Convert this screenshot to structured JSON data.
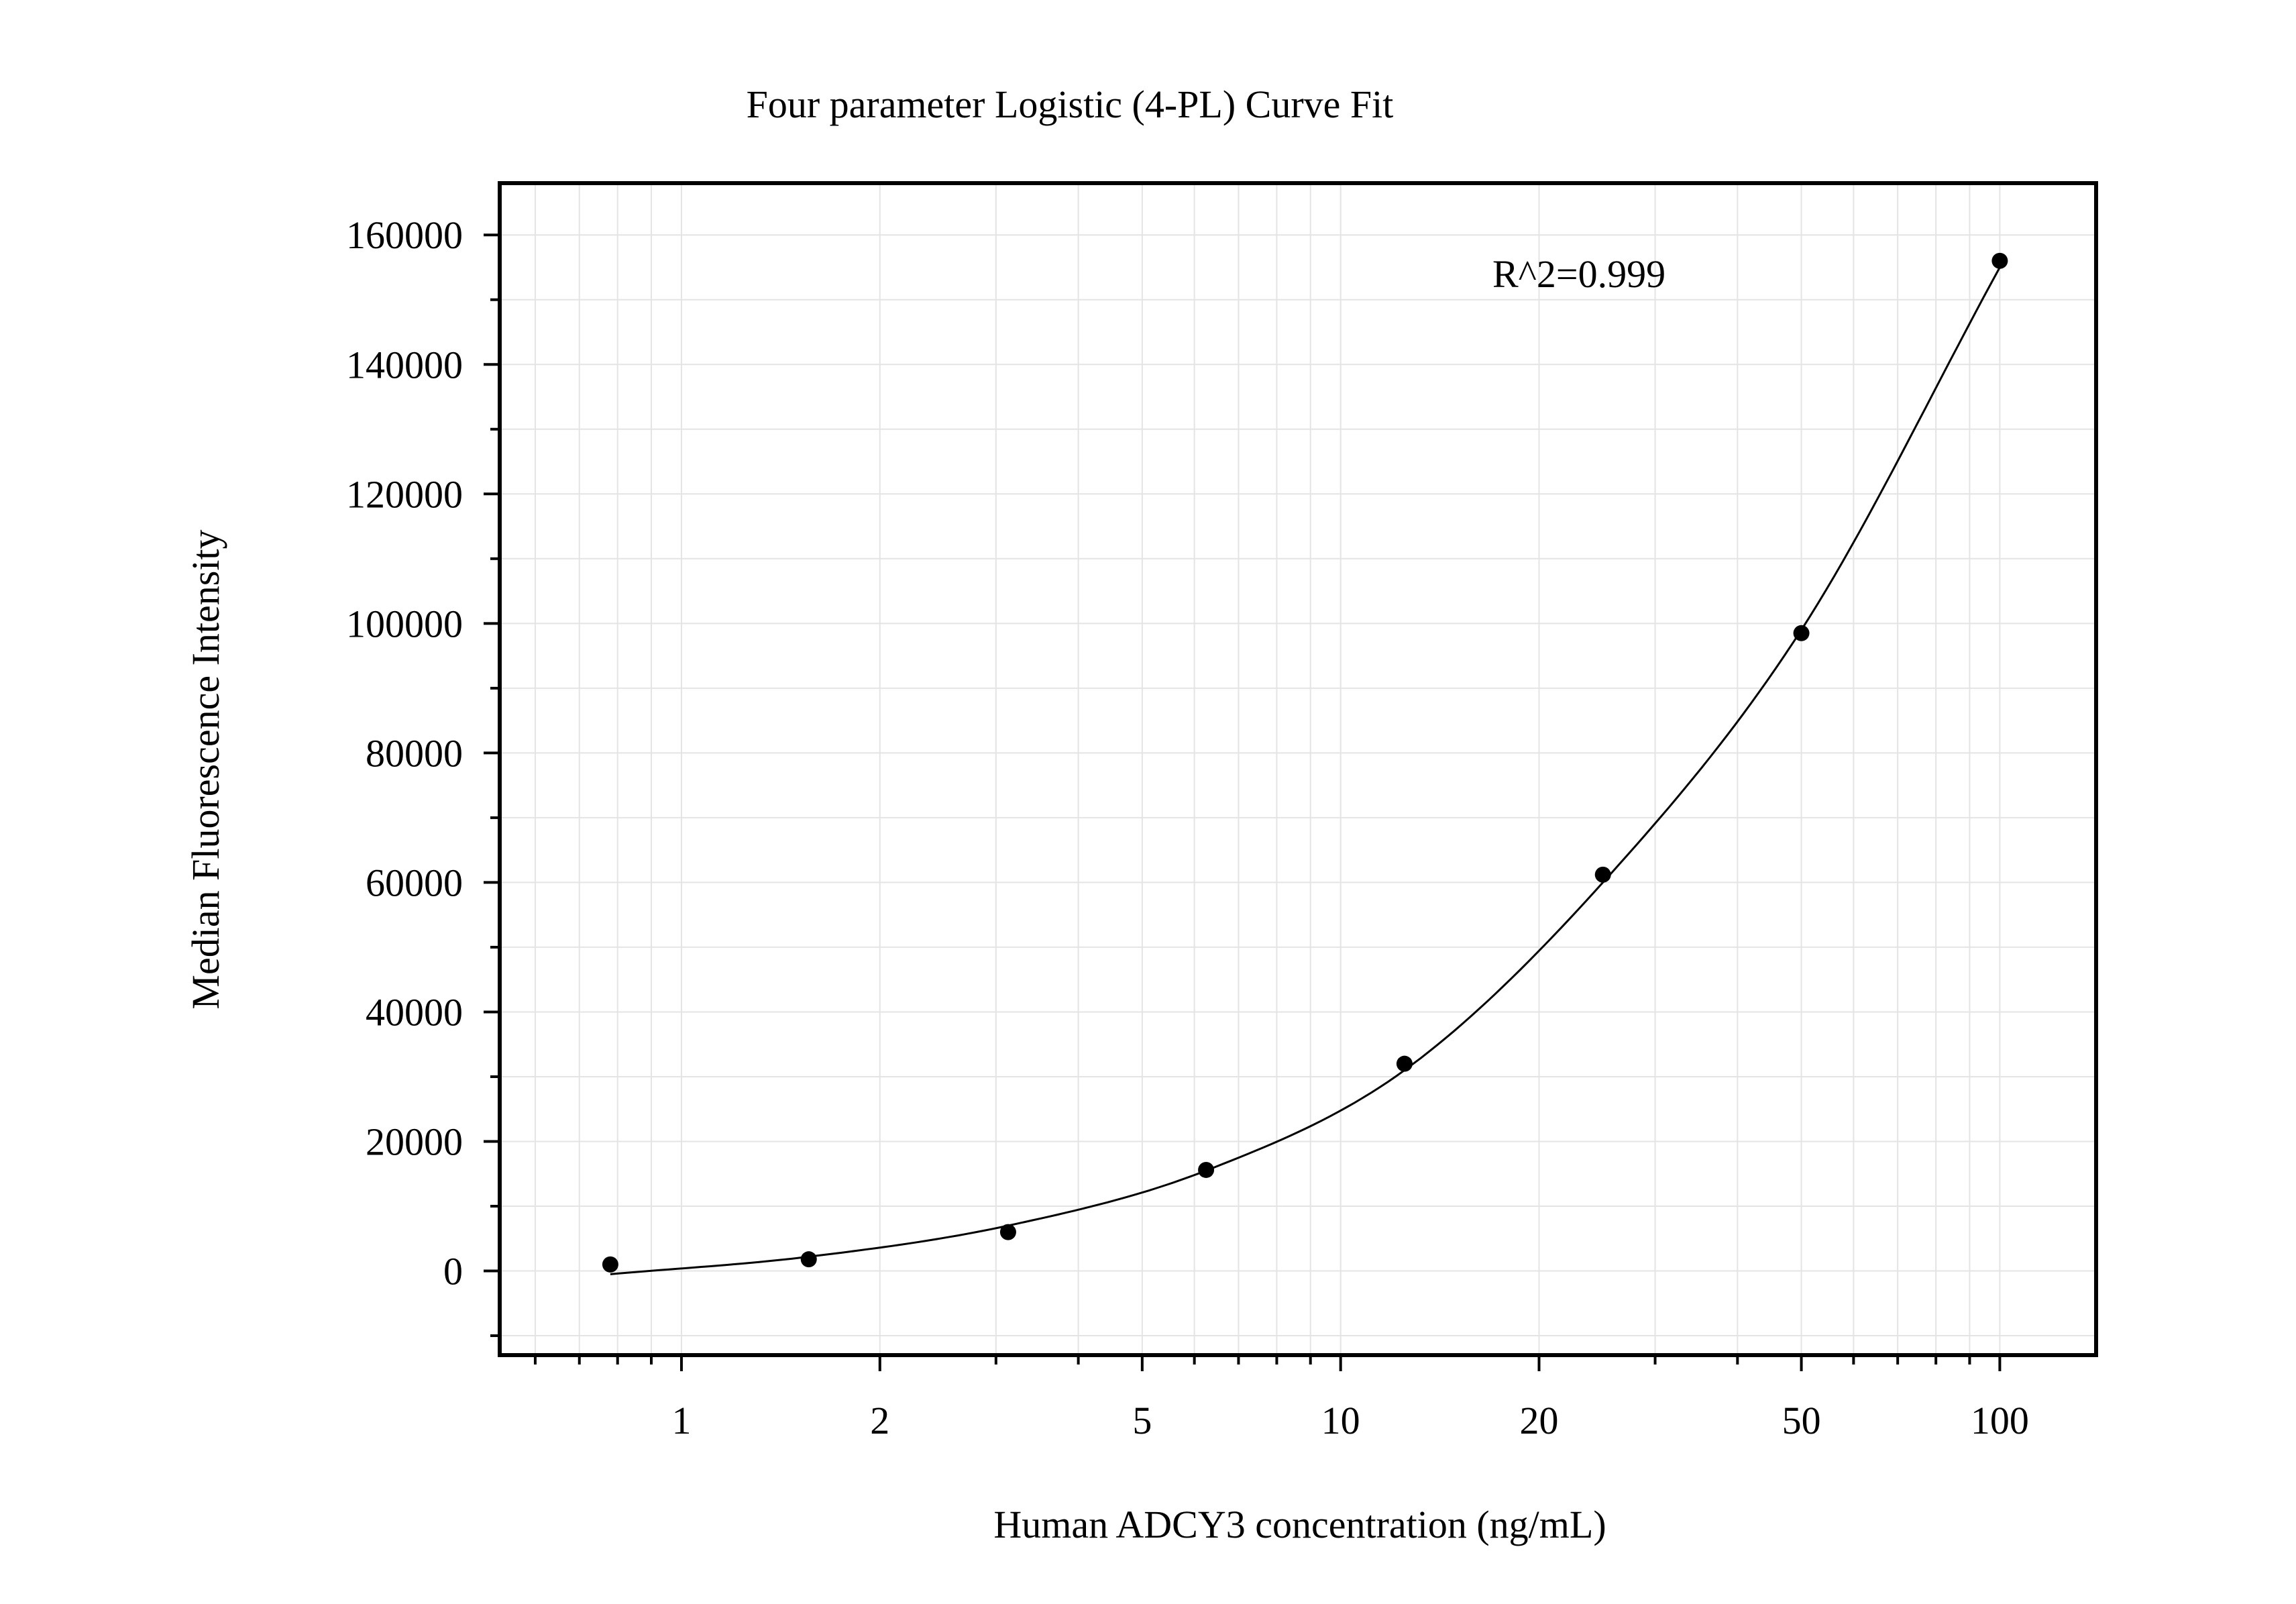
{
  "chart_data": {
    "type": "scatter",
    "title": "Four parameter Logistic (4-PL) Curve Fit",
    "xlabel": "Human ADCY3 concentration (ng/mL)",
    "ylabel": "Median Fluorescence Intensity",
    "x_scale": "log",
    "xlim": [
      0.53,
      140
    ],
    "ylim": [
      -13000,
      168000
    ],
    "grid": true,
    "x_ticks": [
      1,
      2,
      5,
      10,
      20,
      50,
      100
    ],
    "x_tick_labels": [
      "1",
      "2",
      "5",
      "10",
      "20",
      "50",
      "100"
    ],
    "y_ticks": [
      0,
      20000,
      40000,
      60000,
      80000,
      100000,
      120000,
      140000,
      160000
    ],
    "y_tick_labels": [
      "0",
      "20000",
      "40000",
      "60000",
      "80000",
      "100000",
      "120000",
      "140000",
      "160000"
    ],
    "annotation": "R^2=0.999",
    "series": [
      {
        "x": [
          0.78,
          1.56,
          3.13,
          6.25,
          12.5,
          25,
          50,
          100
        ],
        "y": [
          1000,
          1800,
          6000,
          15600,
          32000,
          61200,
          98500,
          156000
        ]
      }
    ],
    "fit_curve": {
      "x": [
        0.78,
        1.56,
        3.13,
        6.25,
        12.5,
        25,
        50,
        100
      ],
      "y": [
        -500,
        2200,
        7000,
        15500,
        31000,
        60000,
        99000,
        155000
      ]
    },
    "colors": {
      "points": "#000000",
      "curve": "#000000",
      "grid": "#e4e4e4",
      "axes": "#000000"
    }
  }
}
